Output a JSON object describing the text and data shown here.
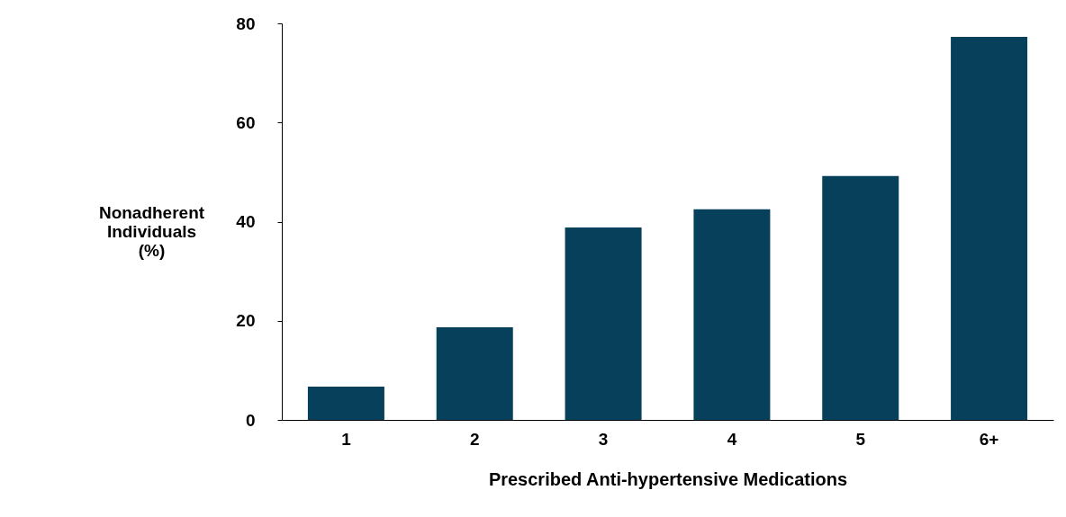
{
  "chart_data": {
    "type": "bar",
    "xlabel": "Prescribed Anti-hypertensive Medications",
    "ylabel": "Nonadherent Individuals (%)",
    "categories": [
      "1",
      "2",
      "3",
      "4",
      "5",
      "6+"
    ],
    "values": [
      6.7,
      18.7,
      38.8,
      42.5,
      49.2,
      77.3
    ],
    "color": "#07405a",
    "ylim": [
      0,
      80
    ],
    "yticks": [
      0,
      20,
      40,
      60,
      80
    ],
    "grid": false
  }
}
